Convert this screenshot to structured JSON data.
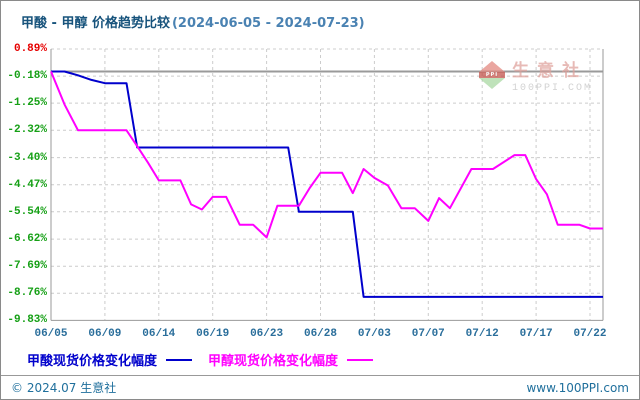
{
  "title": {
    "main": "甲酸 - 甲醇 价格趋势比较",
    "range": "(2024-06-05 - 2024-07-23)"
  },
  "watermark": {
    "brand": "生意社",
    "site": "100PPI.COM",
    "logo_text": "PPI"
  },
  "legend": [
    {
      "label": "甲酸现货价格变化幅度",
      "color": "#0000cc"
    },
    {
      "label": "甲醇现货价格变化幅度",
      "color": "#ff00ff"
    }
  ],
  "footer": {
    "left": "© 2024.07 生意社",
    "right": "www.100PPI.com"
  },
  "colors": {
    "positive_label": "#e60000",
    "negative_label": "#16a016",
    "axis_text": "#2a6e9b",
    "grid": "#cccccc",
    "zero_line": "#9a9a9a",
    "border": "#999999",
    "formic_acid_line": "#0000cc",
    "methanol_line": "#ff00ff"
  },
  "chart_data": {
    "type": "line",
    "title": "甲酸 - 甲醇 价格趋势比较(2024-06-05 - 2024-07-23)",
    "xlabel": "",
    "ylabel": "价格变化幅度(%)",
    "ylim": [
      -9.83,
      0.89
    ],
    "grid": true,
    "zero_line": true,
    "legend_position": "bottom",
    "x_tick_labels": [
      "06/05",
      "06/09",
      "06/14",
      "06/19",
      "06/23",
      "06/28",
      "07/03",
      "07/07",
      "07/12",
      "07/17",
      "07/22"
    ],
    "y_tick_labels": [
      "0.89%",
      "-0.18%",
      "-1.25%",
      "-2.32%",
      "-3.40%",
      "-4.47%",
      "-5.54%",
      "-6.62%",
      "-7.69%",
      "-8.76%",
      "-9.83%"
    ],
    "y_tick_values": [
      0.89,
      -0.18,
      -1.25,
      -2.32,
      -3.4,
      -4.47,
      -5.54,
      -6.62,
      -7.69,
      -8.76,
      -9.83
    ],
    "series": [
      {
        "name": "甲酸现货价格变化幅度",
        "color": "#0000cc",
        "points": [
          [
            "06/05",
            0
          ],
          [
            "06/06",
            0
          ],
          [
            "06/07",
            -0.15
          ],
          [
            "06/08",
            -0.33
          ],
          [
            "06/09",
            -0.46
          ],
          [
            "06/11",
            -0.46
          ],
          [
            "06/12",
            -3.0
          ],
          [
            "06/25",
            -3.0
          ],
          [
            "06/26",
            -5.54
          ],
          [
            "07/01",
            -5.54
          ],
          [
            "07/02",
            -8.9
          ],
          [
            "07/23",
            -8.9
          ]
        ]
      },
      {
        "name": "甲醇现货价格变化幅度",
        "color": "#ff00ff",
        "points": [
          [
            "06/05",
            0
          ],
          [
            "06/06",
            -1.3
          ],
          [
            "06/07",
            -2.32
          ],
          [
            "06/11",
            -2.32
          ],
          [
            "06/12",
            -2.95
          ],
          [
            "06/13",
            -3.6
          ],
          [
            "06/14",
            -4.3
          ],
          [
            "06/16",
            -4.3
          ],
          [
            "06/17",
            -5.25
          ],
          [
            "06/18",
            -5.45
          ],
          [
            "06/19",
            -4.95
          ],
          [
            "06/20",
            -4.95
          ],
          [
            "06/21",
            -6.05
          ],
          [
            "06/22",
            -6.05
          ],
          [
            "06/23",
            -6.55
          ],
          [
            "06/24",
            -5.3
          ],
          [
            "06/26",
            -5.3
          ],
          [
            "06/27",
            -4.6
          ],
          [
            "06/28",
            -4.0
          ],
          [
            "06/30",
            -4.0
          ],
          [
            "07/01",
            -4.8
          ],
          [
            "07/02",
            -3.85
          ],
          [
            "07/03",
            -4.2
          ],
          [
            "07/04",
            -4.5
          ],
          [
            "07/05",
            -5.4
          ],
          [
            "07/06",
            -5.4
          ],
          [
            "07/07",
            -5.9
          ],
          [
            "07/08",
            -5.0
          ],
          [
            "07/09",
            -5.4
          ],
          [
            "07/11",
            -3.85
          ],
          [
            "07/13",
            -3.85
          ],
          [
            "07/15",
            -3.3
          ],
          [
            "07/16",
            -3.3
          ],
          [
            "07/17",
            -4.25
          ],
          [
            "07/18",
            -4.85
          ],
          [
            "07/19",
            -6.05
          ],
          [
            "07/21",
            -6.05
          ],
          [
            "07/22",
            -6.2
          ],
          [
            "07/23",
            -6.2
          ]
        ]
      }
    ]
  }
}
